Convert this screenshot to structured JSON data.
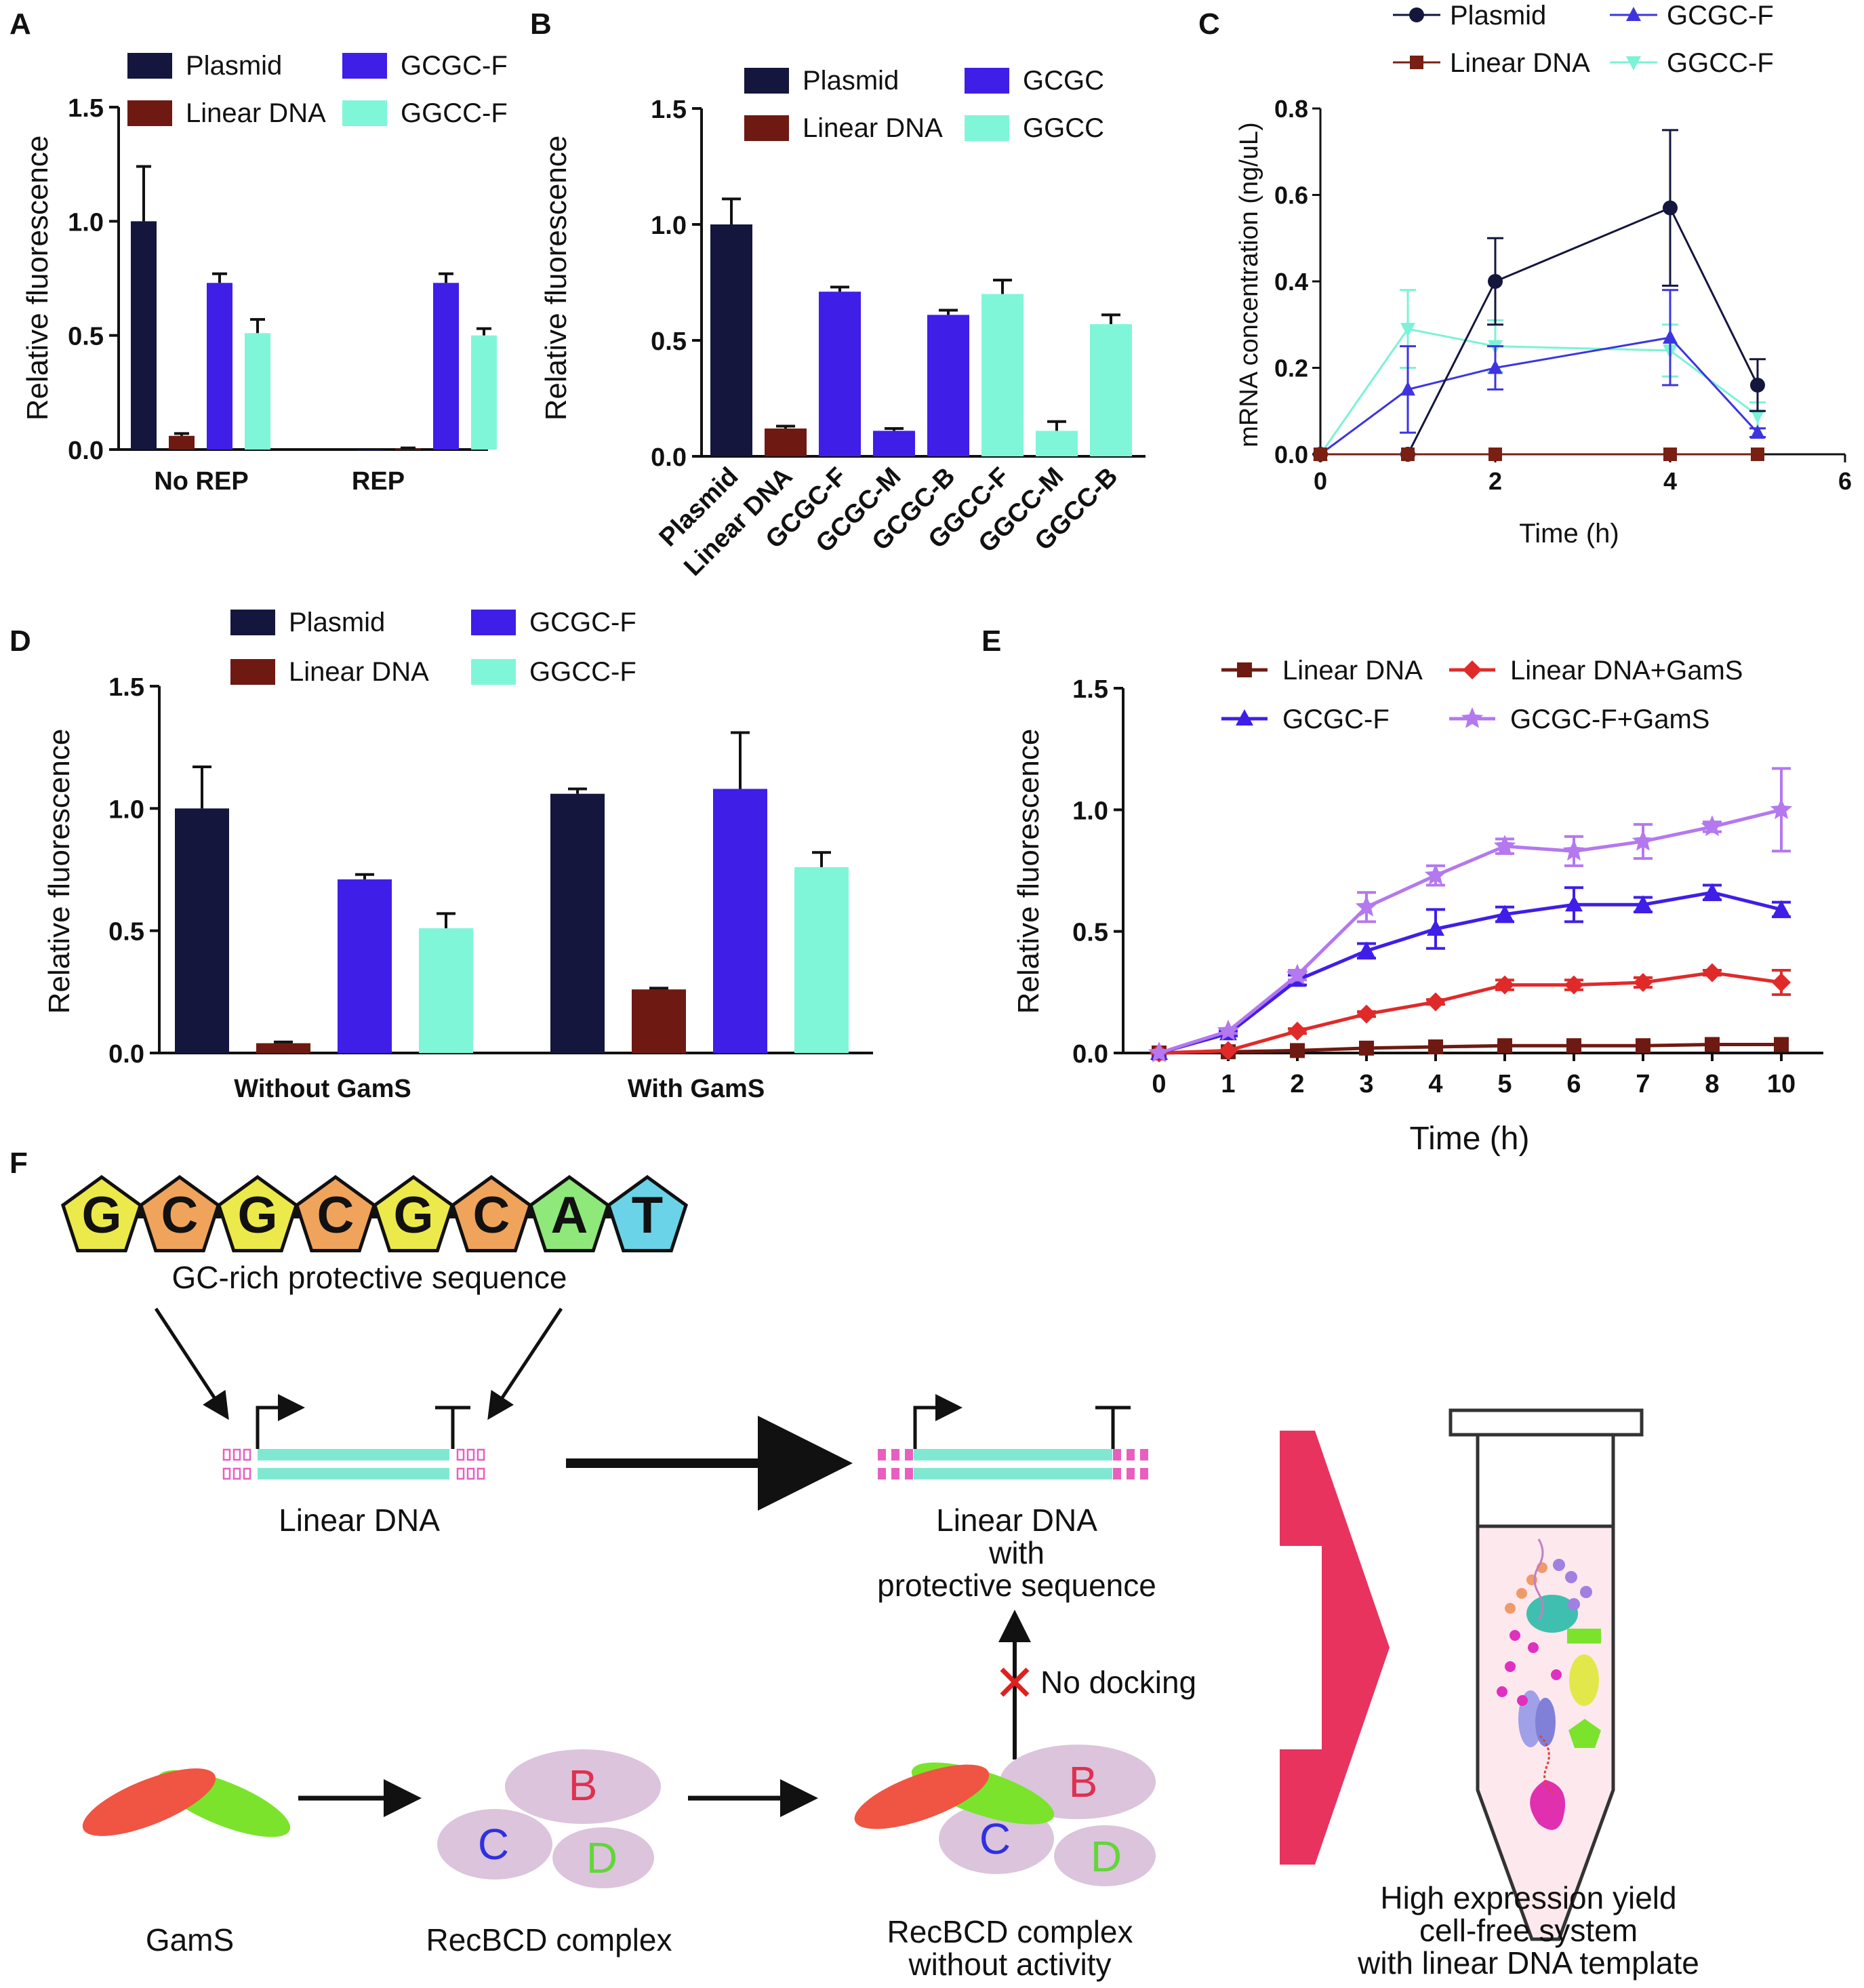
{
  "colors": {
    "plasmid": "#14163d",
    "linear": "#6e1a12",
    "gcgc": "#3f1ee8",
    "ggcc": "#80f6d8",
    "gcgc_gams": "#b478ef",
    "linear_gams": "#e02a2a",
    "c_plasmid": "#14163d",
    "c_linear": "#7a1f14",
    "c_gcgc": "#3d34e0",
    "c_ggcc": "#7cf2d6"
  },
  "chart_data": [
    {
      "panel": "A",
      "type": "bar",
      "ylabel": "Relative fluorescence",
      "ylim": [
        0,
        1.5
      ],
      "yticks": [
        "0.0",
        "0.5",
        "1.0",
        "1.5"
      ],
      "groups": [
        "No REP",
        "REP"
      ],
      "legend": [
        "Plasmid",
        "Linear DNA",
        "GCGC-F",
        "GGCC-F"
      ],
      "series": [
        {
          "name": "Plasmid",
          "values": [
            1.0,
            0.0
          ],
          "errors": [
            0.24,
            0.0
          ]
        },
        {
          "name": "Linear DNA",
          "values": [
            0.06,
            0.005
          ],
          "errors": [
            0.01,
            0.002
          ]
        },
        {
          "name": "GCGC-F",
          "values": [
            0.73,
            0.73
          ],
          "errors": [
            0.04,
            0.04
          ]
        },
        {
          "name": "GGCC-F",
          "values": [
            0.51,
            0.5
          ],
          "errors": [
            0.06,
            0.03
          ]
        }
      ]
    },
    {
      "panel": "B",
      "type": "bar",
      "ylabel": "Relative fluorescence",
      "ylim": [
        0,
        1.5
      ],
      "yticks": [
        "0.0",
        "0.5",
        "1.0",
        "1.5"
      ],
      "categories": [
        "Plasmid",
        "Linear DNA",
        "GCGC-F",
        "GCGC-M",
        "GCGC-B",
        "GGCC-F",
        "GGCC-M",
        "GGCC-B"
      ],
      "values": [
        1.0,
        0.12,
        0.71,
        0.11,
        0.61,
        0.7,
        0.11,
        0.57
      ],
      "errors": [
        0.11,
        0.01,
        0.02,
        0.01,
        0.02,
        0.06,
        0.04,
        0.04
      ],
      "legend": [
        "Plasmid",
        "Linear DNA",
        "GCGC",
        "GGCC"
      ]
    },
    {
      "panel": "C",
      "type": "line",
      "xlabel": "Time (h)",
      "ylabel": "mRNA concentration (ng/uL)",
      "xlim": [
        0,
        6
      ],
      "ylim": [
        0,
        0.8
      ],
      "xticks": [
        "0",
        "2",
        "4",
        "6"
      ],
      "yticks": [
        "0.0",
        "0.2",
        "0.4",
        "0.6",
        "0.8"
      ],
      "x": [
        0,
        1,
        2,
        4,
        5
      ],
      "series": [
        {
          "name": "Plasmid",
          "values": [
            0,
            0,
            0.4,
            0.57,
            0.16
          ],
          "errors": [
            0,
            0,
            0.1,
            0.18,
            0.06
          ]
        },
        {
          "name": "Linear DNA",
          "values": [
            0,
            0,
            0,
            0,
            0
          ],
          "errors": [
            0,
            0,
            0,
            0,
            0
          ]
        },
        {
          "name": "GCGC-F",
          "values": [
            0,
            0.15,
            0.2,
            0.27,
            0.05
          ],
          "errors": [
            0,
            0.1,
            0.05,
            0.11,
            0.01
          ]
        },
        {
          "name": "GGCC-F",
          "values": [
            0,
            0.29,
            0.25,
            0.24,
            0.09
          ],
          "errors": [
            0,
            0.09,
            0.06,
            0.06,
            0.03
          ]
        }
      ]
    },
    {
      "panel": "D",
      "type": "bar",
      "ylabel": "Relative fluorescence",
      "ylim": [
        0,
        1.5
      ],
      "yticks": [
        "0.0",
        "0.5",
        "1.0",
        "1.5"
      ],
      "groups": [
        "Without GamS",
        "With GamS"
      ],
      "legend": [
        "Plasmid",
        "Linear DNA",
        "GCGC-F",
        "GGCC-F"
      ],
      "series": [
        {
          "name": "Plasmid",
          "values": [
            1.0,
            1.06
          ],
          "errors": [
            0.17,
            0.02
          ]
        },
        {
          "name": "Linear DNA",
          "values": [
            0.04,
            0.26
          ],
          "errors": [
            0.005,
            0.005
          ]
        },
        {
          "name": "GCGC-F",
          "values": [
            0.71,
            1.08
          ],
          "errors": [
            0.02,
            0.23
          ]
        },
        {
          "name": "GGCC-F",
          "values": [
            0.51,
            0.76
          ],
          "errors": [
            0.06,
            0.06
          ]
        }
      ]
    },
    {
      "panel": "E",
      "type": "line",
      "xlabel": "Time (h)",
      "ylabel": "Relative fluorescence",
      "ylim": [
        0,
        1.5
      ],
      "yticks": [
        "0.0",
        "0.5",
        "1.0",
        "1.5"
      ],
      "x": [
        "0",
        "1",
        "2",
        "3",
        "4",
        "5",
        "6",
        "7",
        "8",
        "10"
      ],
      "series": [
        {
          "name": "Linear DNA",
          "values": [
            0,
            0.005,
            0.01,
            0.02,
            0.025,
            0.03,
            0.03,
            0.03,
            0.035,
            0.035
          ],
          "errors": [
            0,
            0,
            0,
            0,
            0,
            0,
            0,
            0,
            0,
            0
          ]
        },
        {
          "name": "Linear DNA+GamS",
          "values": [
            0,
            0.01,
            0.09,
            0.16,
            0.21,
            0.28,
            0.28,
            0.29,
            0.33,
            0.29
          ],
          "errors": [
            0,
            0,
            0.01,
            0.01,
            0.01,
            0.02,
            0.02,
            0.02,
            0.01,
            0.05
          ]
        },
        {
          "name": "GCGC-F",
          "values": [
            0,
            0.08,
            0.3,
            0.42,
            0.51,
            0.57,
            0.61,
            0.61,
            0.66,
            0.59
          ],
          "errors": [
            0,
            0.01,
            0.02,
            0.03,
            0.08,
            0.03,
            0.07,
            0.03,
            0.03,
            0.03
          ]
        },
        {
          "name": "GCGC-F+GamS",
          "values": [
            0,
            0.09,
            0.32,
            0.6,
            0.73,
            0.85,
            0.83,
            0.87,
            0.93,
            1.0
          ],
          "errors": [
            0,
            0.01,
            0.02,
            0.06,
            0.04,
            0.03,
            0.06,
            0.07,
            0.02,
            0.17
          ]
        }
      ]
    }
  ],
  "panel_labels": [
    "A",
    "B",
    "C",
    "D",
    "E",
    "F"
  ],
  "diagram": {
    "sequence": [
      "G",
      "C",
      "G",
      "C",
      "G",
      "C",
      "A",
      "T"
    ],
    "sequence_caption": "GC-rich protective sequence",
    "linear_dna": "Linear DNA",
    "linear_dna_protected": [
      "Linear DNA",
      "with",
      "protective sequence"
    ],
    "no_docking": "No docking",
    "gams": "GamS",
    "recbcd": "RecBCD complex",
    "recbcd_inactive": [
      "RecBCD complex",
      "without activity"
    ],
    "recbcd_letters": [
      "B",
      "C",
      "D"
    ],
    "result": [
      "High expression yield",
      "cell-free system",
      "with linear DNA template"
    ]
  }
}
